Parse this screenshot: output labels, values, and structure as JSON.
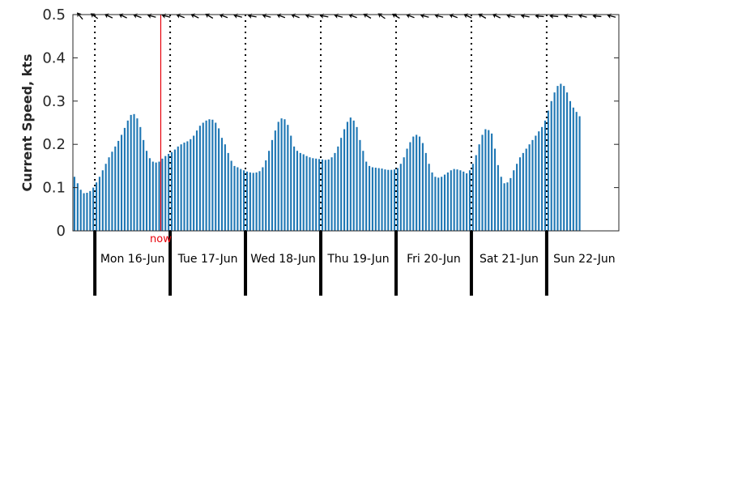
{
  "colors": {
    "bar": "#1f77b4",
    "now_marker": "#e8000b",
    "axis": "#262626",
    "arrow": "#000000"
  },
  "chart_data": {
    "type": "bar",
    "title": "",
    "xlabel": "",
    "ylabel": "Current Speed, kts",
    "ylim": [
      0,
      0.5
    ],
    "yticks": [
      {
        "value": 0,
        "label": "0"
      },
      {
        "value": 0.1,
        "label": "0.1"
      },
      {
        "value": 0.2,
        "label": "0.2"
      },
      {
        "value": 0.3,
        "label": "0.3"
      },
      {
        "value": 0.4,
        "label": "0.4"
      },
      {
        "value": 0.5,
        "label": "0.5"
      }
    ],
    "x_unit": "hours",
    "xlim": [
      0,
      174
    ],
    "day_starts": [
      7,
      31,
      55,
      79,
      103,
      127,
      151
    ],
    "day_labels": [
      "Mon 16-Jun",
      "Tue 17-Jun",
      "Wed 18-Jun",
      "Thu 19-Jun",
      "Fri 20-Jun",
      "Sat 21-Jun",
      "Sun 22-Jun"
    ],
    "now": {
      "x": 28,
      "label": "now"
    },
    "grid": false,
    "legend": "none",
    "direction_arrows": "black arrow glyphs along the top of the plot, mostly pointing left",
    "arrow_angles": [
      130,
      145,
      155,
      155,
      160,
      165,
      165,
      160,
      155,
      150,
      160,
      165,
      170,
      165,
      160,
      160,
      165,
      170,
      165,
      160,
      150,
      145,
      150,
      160,
      165,
      165,
      160,
      155,
      150,
      155,
      165,
      170,
      175,
      175,
      170,
      165,
      175,
      165
    ],
    "series": [
      {
        "values": [
          0.125,
          0.11,
          0.095,
          0.087,
          0.088,
          0.092,
          0.1,
          0.112,
          0.125,
          0.14,
          0.155,
          0.17,
          0.183,
          0.195,
          0.208,
          0.222,
          0.238,
          0.255,
          0.268,
          0.27,
          0.26,
          0.24,
          0.21,
          0.185,
          0.168,
          0.16,
          0.158,
          0.16,
          0.167,
          0.173,
          0.178,
          0.182,
          0.188,
          0.195,
          0.2,
          0.204,
          0.207,
          0.212,
          0.22,
          0.232,
          0.243,
          0.25,
          0.255,
          0.258,
          0.257,
          0.25,
          0.237,
          0.215,
          0.2,
          0.18,
          0.162,
          0.15,
          0.147,
          0.143,
          0.14,
          0.137,
          0.135,
          0.134,
          0.135,
          0.138,
          0.147,
          0.163,
          0.185,
          0.21,
          0.232,
          0.252,
          0.26,
          0.258,
          0.245,
          0.22,
          0.195,
          0.185,
          0.18,
          0.177,
          0.173,
          0.17,
          0.168,
          0.167,
          0.166,
          0.165,
          0.164,
          0.165,
          0.17,
          0.18,
          0.195,
          0.215,
          0.235,
          0.252,
          0.262,
          0.255,
          0.24,
          0.21,
          0.185,
          0.16,
          0.15,
          0.147,
          0.146,
          0.145,
          0.144,
          0.142,
          0.141,
          0.141,
          0.142,
          0.145,
          0.155,
          0.17,
          0.19,
          0.205,
          0.218,
          0.222,
          0.218,
          0.203,
          0.18,
          0.155,
          0.135,
          0.125,
          0.123,
          0.125,
          0.13,
          0.135,
          0.14,
          0.143,
          0.142,
          0.14,
          0.137,
          0.133,
          0.14,
          0.155,
          0.175,
          0.2,
          0.222,
          0.235,
          0.233,
          0.225,
          0.19,
          0.152,
          0.125,
          0.11,
          0.112,
          0.122,
          0.14,
          0.155,
          0.17,
          0.18,
          0.19,
          0.2,
          0.21,
          0.22,
          0.23,
          0.24,
          0.255,
          0.278,
          0.3,
          0.32,
          0.335,
          0.34,
          0.335,
          0.32,
          0.3,
          0.285,
          0.275,
          0.265
        ]
      }
    ]
  }
}
